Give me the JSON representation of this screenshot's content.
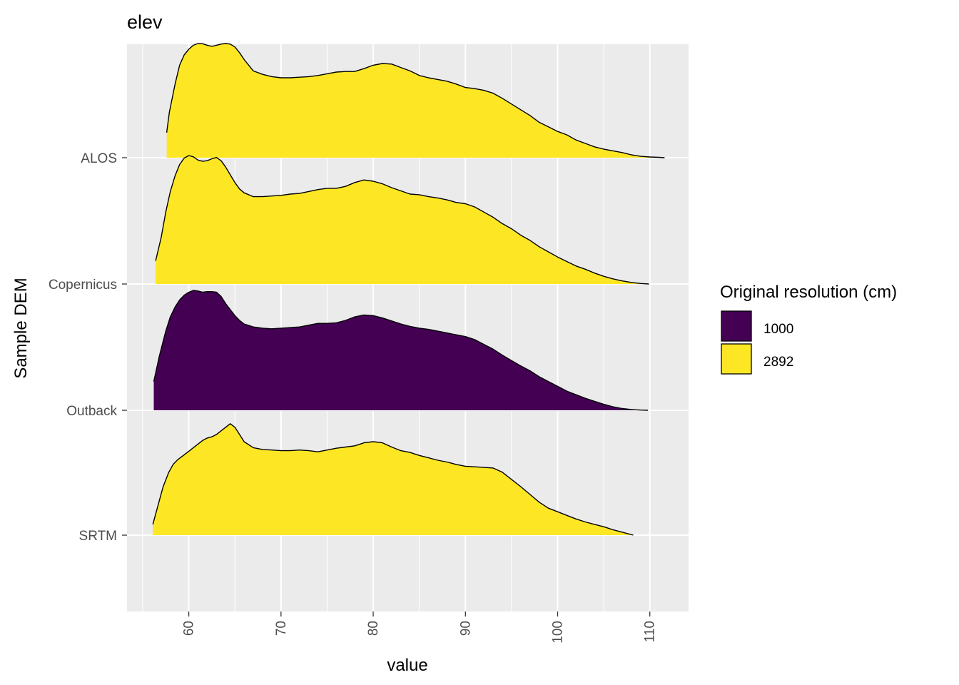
{
  "chart_data": {
    "type": "ridgeline-density",
    "title": "elev",
    "xlabel": "value",
    "ylabel": "Sample DEM",
    "xlim": [
      53.3,
      114.2
    ],
    "x_ticks": [
      60,
      70,
      80,
      90,
      100,
      110
    ],
    "grid": true,
    "legend": {
      "title": "Original resolution (cm)",
      "placement": "right",
      "entries": [
        {
          "label": "1000",
          "color": "#440154"
        },
        {
          "label": "2892",
          "color": "#FDE725"
        }
      ]
    },
    "categories": [
      "ALOS",
      "Copernicus",
      "Outback",
      "SRTM"
    ],
    "series": [
      {
        "name": "ALOS",
        "resolution": "2892",
        "color": "#FDE725",
        "x": [
          57.6,
          57.9,
          58.5,
          59.0,
          59.5,
          60.0,
          60.5,
          61.0,
          61.5,
          62.0,
          62.5,
          63.0,
          63.5,
          64.0,
          64.5,
          65.0,
          65.5,
          66.0,
          66.5,
          67.0,
          68.0,
          69.0,
          70.0,
          71.0,
          72.0,
          73.0,
          74.0,
          75.0,
          76.0,
          77.0,
          78.0,
          79.0,
          80.0,
          81.0,
          82.0,
          83.0,
          84.0,
          85.0,
          86.0,
          87.0,
          88.0,
          89.0,
          90.0,
          91.0,
          92.0,
          93.0,
          94.0,
          95.0,
          96.0,
          97.0,
          98.0,
          99.0,
          100.0,
          101.0,
          102.0,
          103.0,
          104.0,
          105.0,
          106.0,
          107.0,
          108.0,
          109.0,
          110.0,
          111.0,
          111.6
        ],
        "y": [
          0.22,
          0.4,
          0.64,
          0.81,
          0.9,
          0.95,
          0.985,
          1.0,
          0.998,
          0.985,
          0.975,
          0.985,
          0.995,
          1.0,
          0.995,
          0.97,
          0.92,
          0.86,
          0.81,
          0.76,
          0.73,
          0.71,
          0.7,
          0.7,
          0.705,
          0.71,
          0.72,
          0.735,
          0.75,
          0.755,
          0.755,
          0.78,
          0.81,
          0.825,
          0.82,
          0.79,
          0.76,
          0.72,
          0.7,
          0.685,
          0.67,
          0.645,
          0.615,
          0.605,
          0.59,
          0.565,
          0.52,
          0.47,
          0.42,
          0.37,
          0.31,
          0.27,
          0.23,
          0.2,
          0.155,
          0.125,
          0.095,
          0.075,
          0.06,
          0.045,
          0.025,
          0.012,
          0.006,
          0.003,
          0.0
        ]
      },
      {
        "name": "Copernicus",
        "resolution": "2892",
        "color": "#FDE725",
        "x": [
          56.4,
          57.0,
          57.5,
          58.0,
          58.5,
          59.0,
          59.5,
          60.0,
          60.5,
          61.0,
          61.5,
          62.0,
          62.5,
          63.0,
          63.5,
          64.0,
          64.5,
          65.0,
          65.5,
          66.0,
          67.0,
          68.0,
          69.0,
          70.0,
          71.0,
          72.0,
          73.0,
          74.0,
          75.0,
          76.0,
          77.0,
          78.0,
          79.0,
          80.0,
          81.0,
          82.0,
          83.0,
          84.0,
          85.0,
          86.0,
          87.0,
          88.0,
          89.0,
          90.0,
          91.0,
          92.0,
          93.0,
          94.0,
          95.0,
          96.0,
          97.0,
          98.0,
          99.0,
          100.0,
          101.0,
          102.0,
          103.0,
          104.0,
          105.0,
          106.0,
          107.0,
          108.0,
          109.0,
          109.9
        ],
        "y": [
          0.18,
          0.36,
          0.56,
          0.72,
          0.84,
          0.93,
          0.98,
          1.0,
          0.99,
          0.965,
          0.955,
          0.96,
          0.975,
          0.985,
          0.96,
          0.91,
          0.85,
          0.79,
          0.74,
          0.71,
          0.68,
          0.68,
          0.685,
          0.69,
          0.7,
          0.705,
          0.72,
          0.735,
          0.745,
          0.745,
          0.76,
          0.79,
          0.81,
          0.8,
          0.78,
          0.75,
          0.725,
          0.7,
          0.695,
          0.68,
          0.67,
          0.655,
          0.635,
          0.625,
          0.6,
          0.56,
          0.52,
          0.47,
          0.43,
          0.38,
          0.34,
          0.29,
          0.25,
          0.21,
          0.175,
          0.14,
          0.115,
          0.085,
          0.06,
          0.04,
          0.024,
          0.012,
          0.004,
          0.0
        ]
      },
      {
        "name": "Outback",
        "resolution": "1000",
        "color": "#440154",
        "x": [
          56.2,
          56.8,
          57.5,
          58.0,
          58.5,
          59.0,
          59.5,
          60.0,
          60.5,
          61.0,
          61.5,
          62.0,
          62.5,
          63.0,
          63.5,
          64.0,
          64.5,
          65.0,
          65.5,
          66.0,
          67.0,
          68.0,
          69.0,
          70.0,
          71.0,
          72.0,
          73.0,
          74.0,
          75.0,
          76.0,
          77.0,
          78.0,
          79.0,
          80.0,
          81.0,
          82.0,
          83.0,
          84.0,
          85.0,
          86.0,
          87.0,
          88.0,
          89.0,
          90.0,
          91.0,
          92.0,
          93.0,
          94.0,
          95.0,
          96.0,
          97.0,
          98.0,
          99.0,
          100.0,
          101.0,
          102.0,
          103.0,
          104.0,
          105.0,
          106.0,
          107.0,
          108.0,
          109.0,
          109.8
        ],
        "y": [
          0.24,
          0.45,
          0.66,
          0.78,
          0.86,
          0.92,
          0.96,
          0.985,
          1.0,
          0.995,
          0.985,
          0.99,
          0.99,
          0.985,
          0.95,
          0.89,
          0.84,
          0.79,
          0.75,
          0.72,
          0.695,
          0.685,
          0.68,
          0.685,
          0.69,
          0.695,
          0.71,
          0.725,
          0.725,
          0.73,
          0.75,
          0.78,
          0.795,
          0.79,
          0.77,
          0.745,
          0.72,
          0.7,
          0.685,
          0.675,
          0.66,
          0.645,
          0.63,
          0.615,
          0.59,
          0.55,
          0.51,
          0.46,
          0.415,
          0.37,
          0.33,
          0.28,
          0.24,
          0.2,
          0.16,
          0.13,
          0.1,
          0.075,
          0.05,
          0.03,
          0.015,
          0.006,
          0.002,
          0.0
        ]
      },
      {
        "name": "SRTM",
        "resolution": "2892",
        "color": "#FDE725",
        "x": [
          56.1,
          56.6,
          57.2,
          57.8,
          58.3,
          58.8,
          59.5,
          60.0,
          60.5,
          61.0,
          61.5,
          62.0,
          62.5,
          63.0,
          63.5,
          64.0,
          64.5,
          65.0,
          65.5,
          66.0,
          67.0,
          68.0,
          69.0,
          70.0,
          71.0,
          72.0,
          73.0,
          74.0,
          75.0,
          76.0,
          77.0,
          78.0,
          79.0,
          80.0,
          81.0,
          82.0,
          83.0,
          84.0,
          85.0,
          86.0,
          87.0,
          88.0,
          89.0,
          90.0,
          91.0,
          92.0,
          93.0,
          94.0,
          95.0,
          96.0,
          97.0,
          98.0,
          99.0,
          100.0,
          101.0,
          102.0,
          103.0,
          104.0,
          105.0,
          106.0,
          107.0,
          108.2
        ],
        "y": [
          0.09,
          0.23,
          0.4,
          0.52,
          0.59,
          0.63,
          0.67,
          0.7,
          0.73,
          0.76,
          0.79,
          0.81,
          0.82,
          0.84,
          0.87,
          0.9,
          0.93,
          0.9,
          0.84,
          0.78,
          0.73,
          0.715,
          0.71,
          0.705,
          0.705,
          0.71,
          0.705,
          0.695,
          0.71,
          0.725,
          0.735,
          0.745,
          0.77,
          0.78,
          0.77,
          0.735,
          0.705,
          0.69,
          0.665,
          0.645,
          0.625,
          0.61,
          0.59,
          0.575,
          0.57,
          0.565,
          0.56,
          0.525,
          0.465,
          0.405,
          0.34,
          0.275,
          0.225,
          0.195,
          0.165,
          0.135,
          0.11,
          0.09,
          0.07,
          0.045,
          0.025,
          0.0
        ]
      }
    ]
  }
}
